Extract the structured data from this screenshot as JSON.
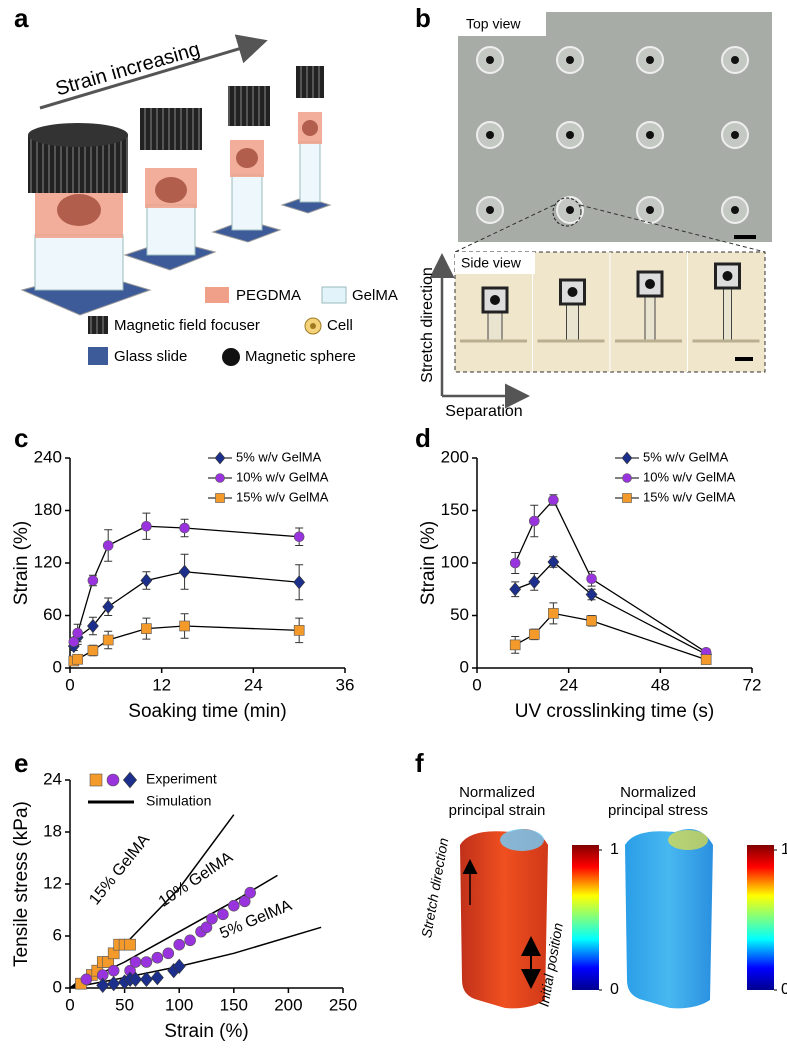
{
  "figure": {
    "panel_labels": [
      "a",
      "b",
      "c",
      "d",
      "e",
      "f"
    ],
    "a": {
      "arrow_label": "Strain increasing",
      "legend": [
        "PEGDMA",
        "GelMA",
        "Magnetic field focuser",
        "Cell",
        "Glass slide",
        "Magnetic sphere"
      ]
    },
    "b": {
      "top_view": "Top view",
      "side_view": "Side view",
      "y_arrow": "Stretch direction",
      "x_arrow": "Separation"
    },
    "f": {
      "titles": [
        [
          "Normalized",
          "principal strain"
        ],
        [
          "Normalized",
          "principal stress"
        ]
      ],
      "stretch": "Stretch direction",
      "initial": "Initial position",
      "colorbar_ticks": [
        0,
        1
      ]
    }
  },
  "chart_data": [
    {
      "type": "line",
      "xlabel": "Soaking time (min)",
      "ylabel": "Strain (%)",
      "x": [
        0.5,
        1,
        3,
        5,
        10,
        15,
        30
      ],
      "xlim": [
        0,
        36
      ],
      "xticks": [
        0,
        12,
        24,
        36
      ],
      "ylim": [
        0,
        240
      ],
      "yticks": [
        0,
        60,
        120,
        180,
        240
      ],
      "line_color": "#000000",
      "legend": "upper right",
      "series": [
        {
          "name": "5% w/v GelMA",
          "color": "#1c2f8c",
          "marker": "diamond",
          "values": [
            25,
            35,
            48,
            70,
            100,
            110,
            98
          ],
          "errors": [
            5,
            8,
            10,
            10,
            10,
            20,
            20
          ]
        },
        {
          "name": "10% w/v GelMA",
          "color": "#9933dd",
          "marker": "circle",
          "values": [
            30,
            40,
            100,
            140,
            162,
            160,
            150
          ],
          "errors": [
            5,
            10,
            6,
            18,
            15,
            10,
            10
          ]
        },
        {
          "name": "15% w/v GelMA",
          "color": "#f39a2b",
          "marker": "square",
          "values": [
            8,
            10,
            20,
            32,
            45,
            48,
            43
          ],
          "errors": [
            5,
            5,
            6,
            10,
            12,
            14,
            14
          ]
        }
      ]
    },
    {
      "type": "line",
      "xlabel": "UV crosslinking time (s)",
      "ylabel": "Strain (%)",
      "x": [
        10,
        15,
        20,
        30,
        60
      ],
      "xlim": [
        0,
        72
      ],
      "xticks": [
        0,
        24,
        48,
        72
      ],
      "ylim": [
        0,
        200
      ],
      "yticks": [
        0,
        50,
        100,
        150,
        200
      ],
      "line_color": "#000000",
      "legend": "upper right",
      "series": [
        {
          "name": "5% w/v GelMA",
          "color": "#1c2f8c",
          "marker": "diamond",
          "values": [
            75,
            82,
            101,
            70,
            13
          ],
          "errors": [
            7,
            8,
            5,
            5,
            3
          ]
        },
        {
          "name": "10% w/v GelMA",
          "color": "#9933dd",
          "marker": "circle",
          "values": [
            100,
            140,
            160,
            85,
            15
          ],
          "errors": [
            10,
            15,
            5,
            7,
            3
          ]
        },
        {
          "name": "15% w/v GelMA",
          "color": "#f39a2b",
          "marker": "square",
          "values": [
            22,
            32,
            52,
            45,
            8
          ],
          "errors": [
            8,
            5,
            10,
            5,
            3
          ]
        }
      ]
    },
    {
      "type": "scatter",
      "xlabel": "Strain (%)",
      "ylabel": "Tensile stress (kPa)",
      "xlim": [
        0,
        250
      ],
      "xticks": [
        0,
        50,
        100,
        150,
        200,
        250
      ],
      "ylim": [
        0,
        24
      ],
      "yticks": [
        0,
        6,
        12,
        18,
        24
      ],
      "legend": "upper left",
      "experiment": {
        "name": "Experiment",
        "series": [
          {
            "color": "#f39a2b",
            "marker": "square",
            "x": [
              10,
              20,
              25,
              30,
              35,
              40,
              45,
              50,
              55
            ],
            "values": [
              0.5,
              1.5,
              2,
              3,
              3,
              4,
              5,
              5,
              5
            ]
          },
          {
            "color": "#9933dd",
            "marker": "circle",
            "x": [
              15,
              30,
              40,
              55,
              60,
              70,
              80,
              90,
              100,
              110,
              120,
              125,
              130,
              140,
              150,
              160,
              165
            ],
            "values": [
              1,
              1.5,
              2,
              2,
              3,
              3,
              3.5,
              4,
              5,
              5.5,
              6.5,
              7,
              8,
              8.5,
              9.5,
              10,
              11
            ]
          },
          {
            "color": "#1c2f8c",
            "marker": "diamond",
            "x": [
              30,
              40,
              50,
              55,
              60,
              70,
              80,
              95,
              100
            ],
            "values": [
              0.3,
              0.5,
              0.7,
              1,
              1,
              1,
              1.2,
              2,
              2.5
            ]
          }
        ]
      },
      "simulation": {
        "name": "Simulation",
        "color": "#000000",
        "series": [
          {
            "label": "15% GelMA",
            "x": [
              0,
              50,
              100,
              150
            ],
            "values": [
              0,
              5,
              11.5,
              20
            ]
          },
          {
            "label": "10% GelMA",
            "x": [
              0,
              50,
              100,
              150,
              190
            ],
            "values": [
              0,
              3,
              6.5,
              10,
              13
            ]
          },
          {
            "label": "5% GelMA",
            "x": [
              0,
              50,
              100,
              150,
              230
            ],
            "values": [
              0,
              1.2,
              2.5,
              4,
              7
            ]
          }
        ]
      }
    }
  ]
}
